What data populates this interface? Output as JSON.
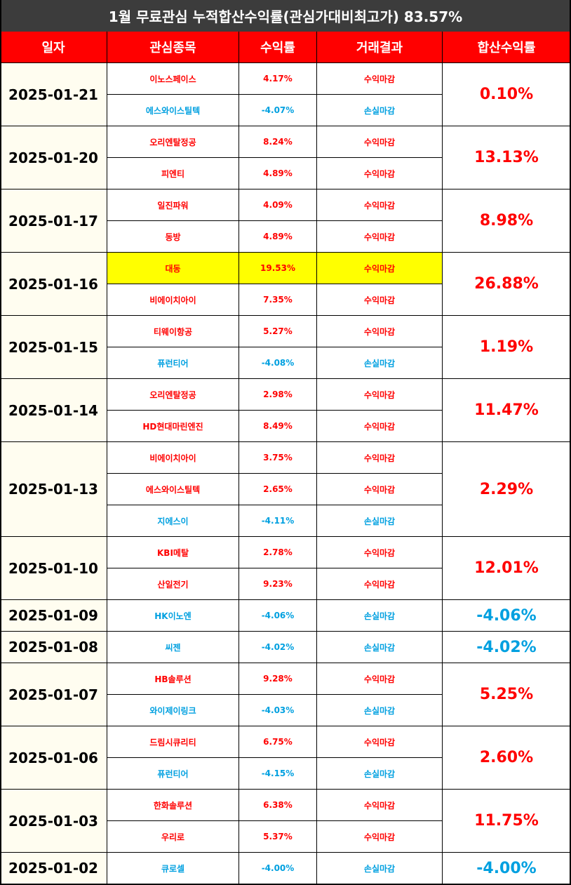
{
  "title": "1월 무료관심 누적합산수익률(관심가대비최고가) 83.57%",
  "header": [
    "일자",
    "관심종목",
    "수익률",
    "거래결과",
    "합산수익률"
  ],
  "groups": [
    {
      "date": "2025-01-21",
      "total": "0.10%",
      "items": [
        {
          "name": "이노스페이스",
          "return": "4.17%",
          "result": "수익마감"
        },
        {
          "name": "에스와이스틸텍",
          "return": "-4.07%",
          "result": "손실마감"
        }
      ]
    },
    {
      "date": "2025-01-20",
      "total": "13.13%",
      "items": [
        {
          "name": "오리엔탈정공",
          "return": "8.24%",
          "result": "수익마감"
        },
        {
          "name": "피엔티",
          "return": "4.89%",
          "result": "수익마감"
        }
      ]
    },
    {
      "date": "2025-01-17",
      "total": "8.98%",
      "items": [
        {
          "name": "일진파워",
          "return": "4.09%",
          "result": "수익마감"
        },
        {
          "name": "동방",
          "return": "4.89%",
          "result": "수익마감"
        }
      ]
    },
    {
      "date": "2025-01-16",
      "total": "26.88%",
      "items": [
        {
          "name": "대동",
          "return": "19.53%",
          "result": "수익마감",
          "highlight": true
        },
        {
          "name": "비에이치아이",
          "return": "7.35%",
          "result": "수익마감"
        }
      ]
    },
    {
      "date": "2025-01-15",
      "total": "1.19%",
      "items": [
        {
          "name": "티웨이항공",
          "return": "5.27%",
          "result": "수익마감"
        },
        {
          "name": "퓨런티어",
          "return": "-4.08%",
          "result": "손실마감"
        }
      ]
    },
    {
      "date": "2025-01-14",
      "total": "11.47%",
      "items": [
        {
          "name": "오리엔탈정공",
          "return": "2.98%",
          "result": "수익마감"
        },
        {
          "name": "HD현대마린엔진",
          "return": "8.49%",
          "result": "수익마감"
        }
      ]
    },
    {
      "date": "2025-01-13",
      "total": "2.29%",
      "items": [
        {
          "name": "비에이치아이",
          "return": "3.75%",
          "result": "수익마감"
        },
        {
          "name": "에스와이스틸텍",
          "return": "2.65%",
          "result": "수익마감"
        },
        {
          "name": "지에스이",
          "return": "-4.11%",
          "result": "손실마감"
        }
      ]
    },
    {
      "date": "2025-01-10",
      "total": "12.01%",
      "items": [
        {
          "name": "KBI메탈",
          "return": "2.78%",
          "result": "수익마감"
        },
        {
          "name": "산일전기",
          "return": "9.23%",
          "result": "수익마감"
        }
      ]
    },
    {
      "date": "2025-01-09",
      "total": "-4.06%",
      "items": [
        {
          "name": "HK이노엔",
          "return": "-4.06%",
          "result": "손실마감"
        }
      ]
    },
    {
      "date": "2025-01-08",
      "total": "-4.02%",
      "items": [
        {
          "name": "씨젠",
          "return": "-4.02%",
          "result": "손실마감"
        }
      ]
    },
    {
      "date": "2025-01-07",
      "total": "5.25%",
      "items": [
        {
          "name": "HB솔루션",
          "return": "9.28%",
          "result": "수익마감"
        },
        {
          "name": "와이제이링크",
          "return": "-4.03%",
          "result": "손실마감"
        }
      ]
    },
    {
      "date": "2025-01-06",
      "total": "2.60%",
      "items": [
        {
          "name": "드림시큐리티",
          "return": "6.75%",
          "result": "수익마감"
        },
        {
          "name": "퓨런티어",
          "return": "-4.15%",
          "result": "손실마감"
        }
      ]
    },
    {
      "date": "2025-01-03",
      "total": "11.75%",
      "items": [
        {
          "name": "한화솔루션",
          "return": "6.38%",
          "result": "수익마감"
        },
        {
          "name": "우리로",
          "return": "5.37%",
          "result": "수익마감"
        }
      ]
    },
    {
      "date": "2025-01-02",
      "total": "-4.00%",
      "items": [
        {
          "name": "큐로셀",
          "return": "-4.00%",
          "result": "손실마감"
        }
      ]
    }
  ]
}
